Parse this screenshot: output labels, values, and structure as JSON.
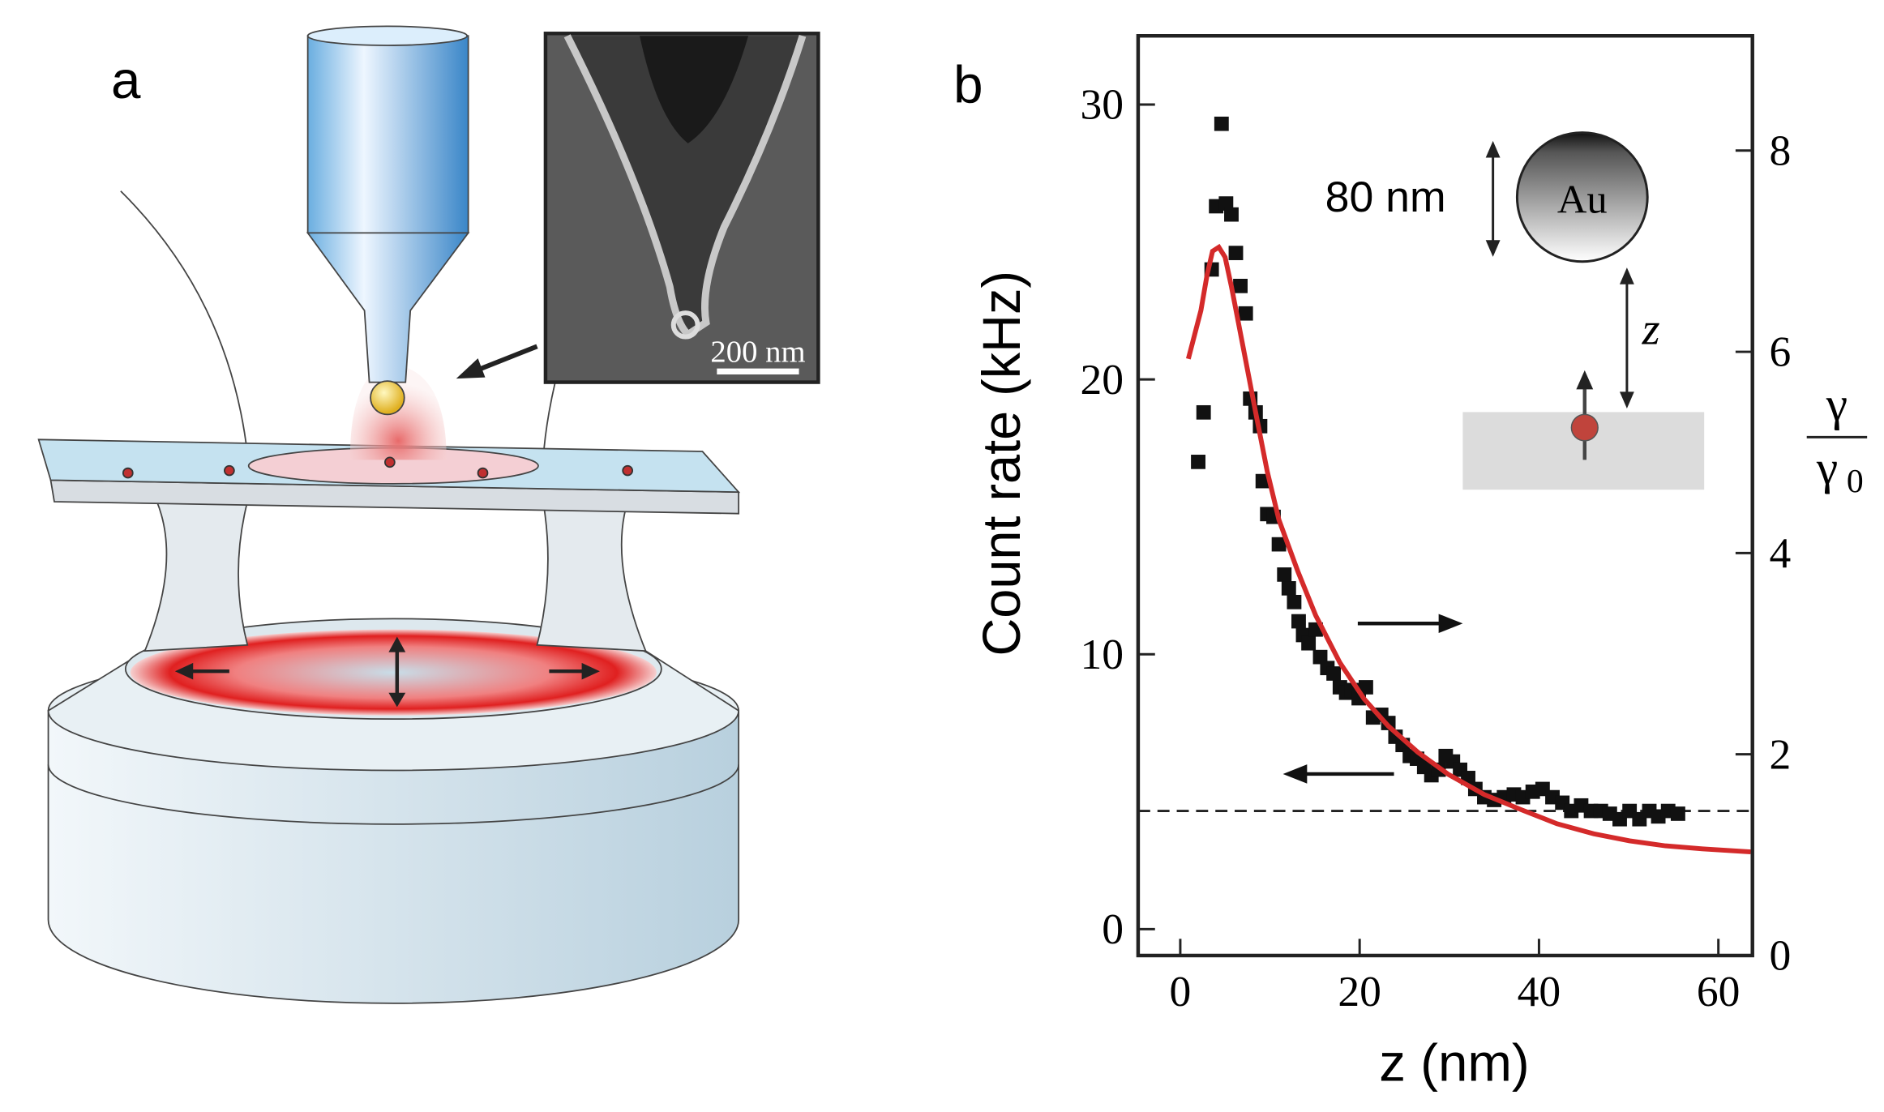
{
  "panel_labels": [
    "a",
    "b"
  ],
  "inset_scale_bar": "200 nm",
  "chart_data": {
    "type": "scatter",
    "xlabel": "z (nm)",
    "ylabel": "Count rate (kHz)",
    "y2label": {
      "numerator": "γ",
      "denominator": "γ",
      "subscript": "0"
    },
    "xlim": [
      -4.7,
      63.8
    ],
    "ylim": [
      -0.96,
      32.5
    ],
    "y2lim": [
      0,
      9.14
    ],
    "xticks": [
      0,
      20,
      40,
      60
    ],
    "yticks": [
      0,
      10,
      20,
      30
    ],
    "y2ticks": [
      0,
      2,
      4,
      6,
      8
    ],
    "hline": 4.3,
    "annotations": [
      "80 nm",
      "Au",
      "z"
    ],
    "series": [
      {
        "color": "#111111",
        "marker": "square",
        "x": [
          2.0,
          2.6,
          3.5,
          4.0,
          4.6,
          5.1,
          5.7,
          6.2,
          6.7,
          7.3,
          7.8,
          8.4,
          8.9,
          9.2,
          9.7,
          10.4,
          11.0,
          11.6,
          12.1,
          12.7,
          13.2,
          13.7,
          14.3,
          15.1,
          15.6,
          16.4,
          17.1,
          17.8,
          18.5,
          19.1,
          19.9,
          20.7,
          21.5,
          22.4,
          23.2,
          24.0,
          24.8,
          25.6,
          26.4,
          27.2,
          28.0,
          28.8,
          29.6,
          30.4,
          31.2,
          32.1,
          32.9,
          33.9,
          35.0,
          36.1,
          37.2,
          38.2,
          39.3,
          40.4,
          41.5,
          42.6,
          43.6,
          44.7,
          45.8,
          46.9,
          47.9,
          49.0,
          50.1,
          51.2,
          52.3,
          53.3,
          54.4,
          55.5
        ],
        "values": [
          17.0,
          18.8,
          24.0,
          26.3,
          29.3,
          26.4,
          26.0,
          24.6,
          23.4,
          22.4,
          19.3,
          18.8,
          18.3,
          16.3,
          15.1,
          15.0,
          14.0,
          12.9,
          12.4,
          11.9,
          11.2,
          10.7,
          10.4,
          10.9,
          9.9,
          9.5,
          9.3,
          8.8,
          8.6,
          8.7,
          8.4,
          8.8,
          7.7,
          7.8,
          7.5,
          7.0,
          6.7,
          6.3,
          6.2,
          5.9,
          5.6,
          5.8,
          6.3,
          6.1,
          5.8,
          5.5,
          5.1,
          4.8,
          4.7,
          4.8,
          4.9,
          4.8,
          5.0,
          5.1,
          4.8,
          4.6,
          4.3,
          4.5,
          4.3,
          4.3,
          4.2,
          4.0,
          4.3,
          4.0,
          4.3,
          4.1,
          4.3,
          4.2
        ]
      },
      {
        "color": "#d42a2a",
        "style": "line",
        "axis": "y2",
        "x": [
          0.9,
          2.3,
          3.0,
          3.6,
          4.3,
          5.0,
          5.7,
          7.0,
          8.4,
          9.7,
          11.0,
          13.1,
          15.1,
          17.8,
          20.5,
          23.2,
          26.5,
          29.9,
          33.9,
          38.0,
          42.0,
          46.1,
          50.1,
          54.1,
          58.2,
          63.6
        ],
        "values": [
          5.93,
          6.41,
          6.77,
          7.0,
          7.04,
          6.94,
          6.65,
          6.05,
          5.4,
          4.81,
          4.33,
          3.82,
          3.38,
          2.91,
          2.55,
          2.28,
          2.02,
          1.8,
          1.6,
          1.45,
          1.31,
          1.21,
          1.14,
          1.09,
          1.06,
          1.03
        ]
      }
    ]
  }
}
